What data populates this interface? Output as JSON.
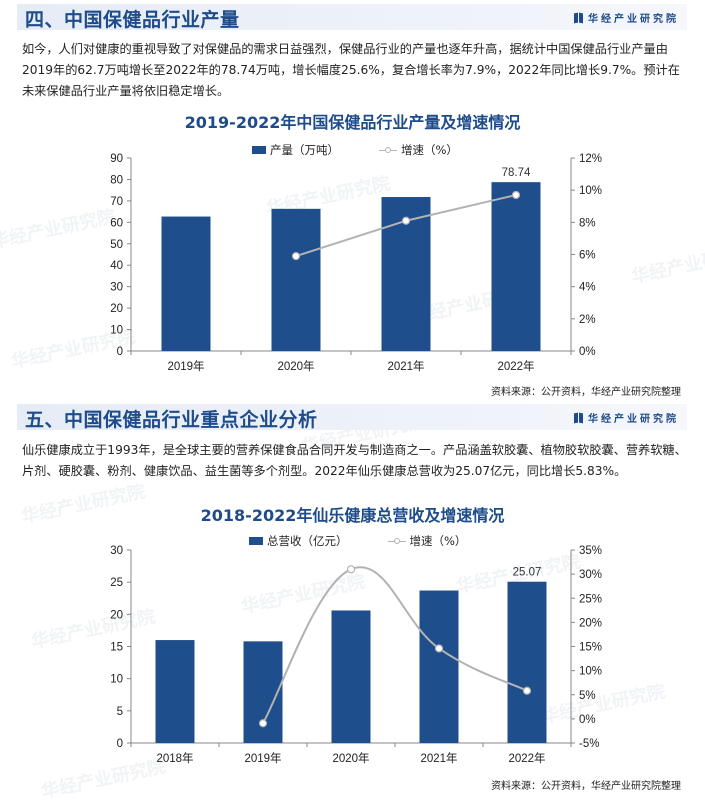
{
  "brand": {
    "name": "华经产业研究院"
  },
  "watermark_text": "华经产业研究院",
  "section4": {
    "title": "四、中国保健品行业产量",
    "paragraph": "如今，人们对健康的重视导致了对保健品的需求日益强烈，保健品行业的产量也逐年升高，据统计中国保健品行业产量由2019年的62.7万吨增长至2022年的78.74万吨，增长幅度25.6%，复合增长率为7.9%，2022年同比增长9.7%。预计在未来保健品行业产量将依旧稳定增长。",
    "source": "资料来源：公开资料，华经产业研究院整理"
  },
  "section5": {
    "title": "五、中国保健品行业重点企业分析",
    "paragraph": "仙乐健康成立于1993年，是全球主要的营养保健食品合同开发与制造商之一。产品涵盖软胶囊、植物胶软胶囊、营养软糖、片剂、硬胶囊、粉剂、健康饮品、益生菌等多个剂型。2022年仙乐健康总营收为25.07亿元，同比增长5.83%。",
    "source": "资料来源：公开资料，华经产业研究院整理"
  },
  "colors": {
    "bar": "#1f4e8c",
    "line": "#b3b3b3",
    "title": "#1e4b8a"
  },
  "chart_data": [
    {
      "type": "bar",
      "title": "2019-2022年中国保健品行业产量及增速情况",
      "categories": [
        "2019年",
        "2020年",
        "2021年",
        "2022年"
      ],
      "series": [
        {
          "name": "产量（万吨）",
          "type": "bar",
          "axis": "left",
          "values": [
            62.7,
            66.3,
            71.8,
            78.74
          ]
        },
        {
          "name": "增速（%）",
          "type": "line",
          "axis": "right",
          "values": [
            null,
            5.9,
            8.1,
            9.7
          ]
        }
      ],
      "data_labels": {
        "2022年": "78.74"
      },
      "ylim_left": [
        0,
        90
      ],
      "yticks_left": [
        0,
        10,
        20,
        30,
        40,
        50,
        60,
        70,
        80,
        90
      ],
      "ylim_right": [
        0,
        12
      ],
      "yticks_right": [
        "0%",
        "2%",
        "4%",
        "6%",
        "8%",
        "10%",
        "12%"
      ],
      "legend_position": "top",
      "grid": false
    },
    {
      "type": "bar",
      "title": "2018-2022年仙乐健康总营收及增速情况",
      "categories": [
        "2018年",
        "2019年",
        "2020年",
        "2021年",
        "2022年"
      ],
      "series": [
        {
          "name": "总营收（亿元）",
          "type": "bar",
          "axis": "left",
          "values": [
            16.0,
            15.8,
            20.6,
            23.7,
            25.07
          ]
        },
        {
          "name": "增速（%）",
          "type": "line",
          "axis": "right",
          "smooth": true,
          "values": [
            null,
            -0.9,
            31.0,
            14.6,
            5.83
          ]
        }
      ],
      "data_labels": {
        "2022年": "25.07"
      },
      "ylim_left": [
        0,
        30
      ],
      "yticks_left": [
        0,
        5,
        10,
        15,
        20,
        25,
        30
      ],
      "ylim_right": [
        -5,
        35
      ],
      "yticks_right": [
        "-5%",
        "0%",
        "5%",
        "10%",
        "15%",
        "20%",
        "25%",
        "30%",
        "35%"
      ],
      "legend_position": "top",
      "grid": false
    }
  ]
}
